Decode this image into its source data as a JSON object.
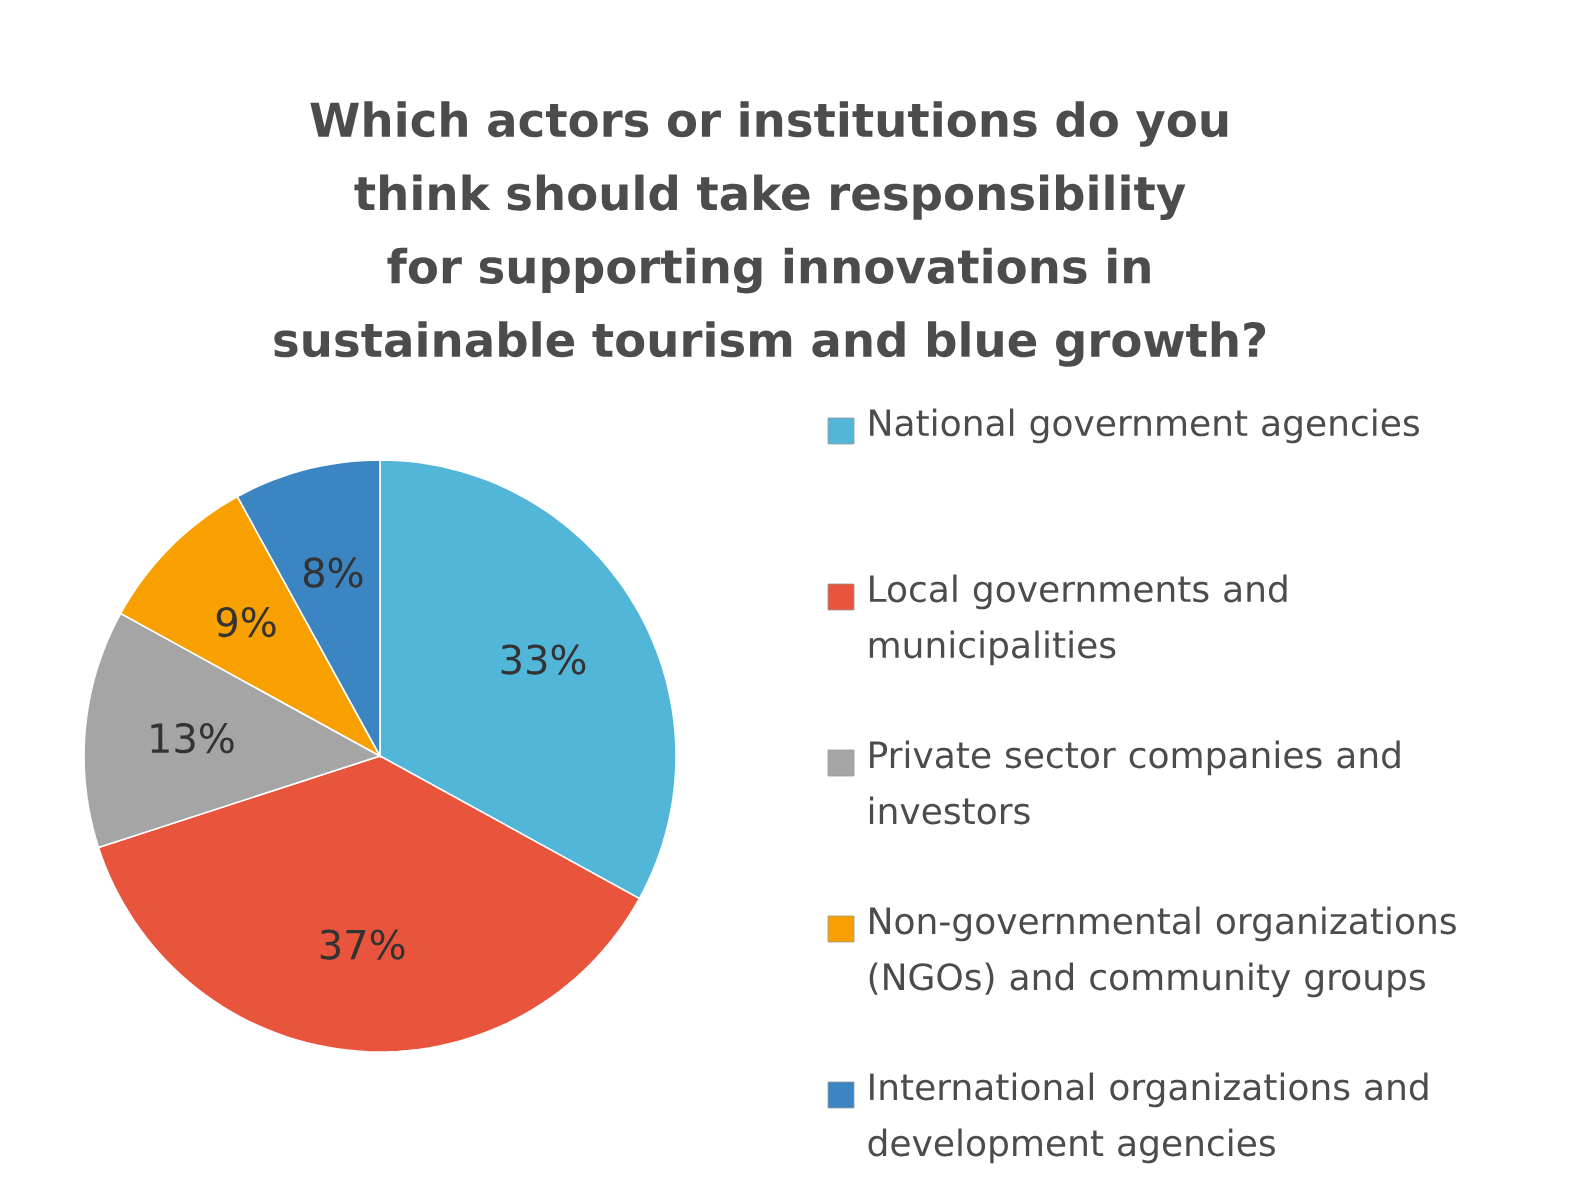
{
  "chart_data": {
    "type": "pie",
    "title": "Which actors or institutions do you think should take responsibility for supporting innovations in sustainable tourism and blue growth?",
    "categories": [
      "National government agencies",
      "Local governments and municipalities",
      "Private sector companies and investors",
      "Non-governmental organizations (NGOs) and community groups",
      "International organizations and development agencies"
    ],
    "values": [
      33,
      37,
      13,
      9,
      8
    ],
    "value_labels": [
      "33%",
      "37%",
      "13%",
      "9%",
      "8%"
    ],
    "colors": [
      "#52b6d8",
      "#e9543c",
      "#a5a5a5",
      "#f7a000",
      "#3b85c2"
    ],
    "legend": "right"
  }
}
